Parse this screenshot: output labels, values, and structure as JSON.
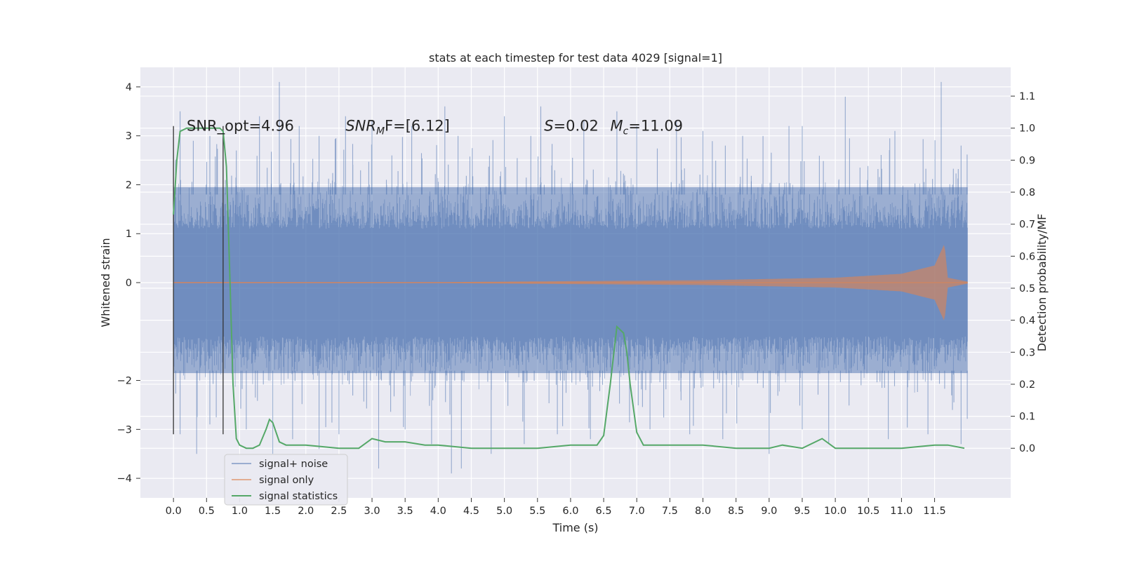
{
  "chart_data": {
    "type": "line",
    "title": "stats at each timestep for test data 4029 [signal=1]",
    "xlabel": "Time (s)",
    "ylabel": "Whitened strain",
    "y2label": "Detection probability/MF",
    "xlim": [
      -0.5,
      12.65
    ],
    "ylim": [
      -4.4,
      4.4
    ],
    "y2lim": [
      -0.155,
      1.19
    ],
    "x_ticks": [
      "0.0",
      "0.5",
      "1.0",
      "1.5",
      "2.0",
      "2.5",
      "3.0",
      "3.5",
      "4.0",
      "4.5",
      "5.0",
      "5.5",
      "6.0",
      "6.5",
      "7.0",
      "7.5",
      "8.0",
      "8.5",
      "9.0",
      "9.5",
      "10.0",
      "10.5",
      "11.0",
      "11.5"
    ],
    "y_ticks": [
      "4",
      "3",
      "2",
      "1",
      "0",
      "−2",
      "−3",
      "−4"
    ],
    "y2_ticks": [
      "1.1",
      "1.0",
      "0.9",
      "0.8",
      "0.7",
      "0.6",
      "0.5",
      "0.4",
      "0.3",
      "0.2",
      "0.1",
      "0.0"
    ],
    "grid": true,
    "legend_position": "bottom-left",
    "annotations": [
      {
        "label": "SNR_opt=4.96",
        "x": 0.2,
        "y": 3.2
      },
      {
        "label": "SNR",
        "sub": "M",
        "rest": "F=[6.12]",
        "x": 2.6,
        "y": 3.2
      },
      {
        "label": "S",
        "rest": "=0.02",
        "x": 5.6,
        "y": 3.2
      },
      {
        "label": "M",
        "sub": "c",
        "rest": "=11.09",
        "x": 6.6,
        "y": 3.2
      }
    ],
    "vlines": [
      {
        "x": 0.0,
        "y": [
          -3.1,
          3.2
        ]
      },
      {
        "x": 0.75,
        "y": [
          -3.1,
          3.2
        ]
      }
    ],
    "series": [
      {
        "name": "signal+ noise",
        "color": "#4c72b0",
        "x_range": [
          0,
          12.0
        ],
        "envelope_core": [
          -1.85,
          1.95
        ],
        "spikes_up": [
          [
            0.1,
            3.5
          ],
          [
            0.3,
            2.9
          ],
          [
            0.55,
            3.0
          ],
          [
            0.95,
            2.7
          ],
          [
            1.3,
            3.4
          ],
          [
            1.6,
            4.1
          ],
          [
            1.9,
            3.2
          ],
          [
            2.2,
            3.0
          ],
          [
            2.6,
            3.4
          ],
          [
            3.0,
            3.3
          ],
          [
            3.3,
            2.6
          ],
          [
            3.6,
            3.2
          ],
          [
            4.1,
            3.6
          ],
          [
            4.3,
            3.0
          ],
          [
            5.0,
            3.4
          ],
          [
            5.4,
            3.0
          ],
          [
            5.55,
            3.6
          ],
          [
            6.2,
            3.3
          ],
          [
            6.7,
            3.5
          ],
          [
            7.0,
            3.2
          ],
          [
            7.6,
            3.3
          ],
          [
            8.0,
            3.1
          ],
          [
            8.6,
            3.0
          ],
          [
            9.3,
            3.2
          ],
          [
            9.5,
            3.2
          ],
          [
            10.15,
            3.8
          ],
          [
            10.9,
            3.1
          ],
          [
            11.6,
            4.1
          ],
          [
            11.9,
            2.8
          ]
        ],
        "spikes_down": [
          [
            0.1,
            -3.1
          ],
          [
            0.35,
            -3.5
          ],
          [
            0.55,
            -2.9
          ],
          [
            1.1,
            -3.0
          ],
          [
            1.5,
            -3.5
          ],
          [
            1.8,
            -3.2
          ],
          [
            2.2,
            -3.4
          ],
          [
            2.5,
            -3.1
          ],
          [
            3.1,
            -3.8
          ],
          [
            3.5,
            -3.0
          ],
          [
            3.9,
            -3.3
          ],
          [
            4.2,
            -3.9
          ],
          [
            4.35,
            -3.8
          ],
          [
            4.8,
            -3.5
          ],
          [
            5.3,
            -3.3
          ],
          [
            5.8,
            -3.1
          ],
          [
            6.3,
            -3.2
          ],
          [
            7.2,
            -3.0
          ],
          [
            7.8,
            -3.1
          ],
          [
            8.3,
            -3.2
          ],
          [
            9.0,
            -3.5
          ],
          [
            9.5,
            -3.0
          ],
          [
            9.9,
            -3.3
          ],
          [
            10.8,
            -3.2
          ],
          [
            11.4,
            -3.1
          ],
          [
            11.9,
            -3.3
          ]
        ]
      },
      {
        "name": "signal only",
        "color": "#dd8452",
        "x_range": [
          0,
          12.0
        ],
        "amplitude": [
          [
            0.0,
            0.01
          ],
          [
            4.0,
            0.01
          ],
          [
            8.0,
            0.05
          ],
          [
            10.0,
            0.1
          ],
          [
            11.0,
            0.18
          ],
          [
            11.5,
            0.35
          ],
          [
            11.65,
            0.8
          ],
          [
            11.7,
            0.1
          ],
          [
            12.0,
            0.02
          ]
        ]
      },
      {
        "name": "signal statistics",
        "color": "#55a868",
        "axis": "right",
        "x": [
          0.0,
          0.05,
          0.1,
          0.2,
          0.3,
          0.5,
          0.7,
          0.75,
          0.8,
          0.85,
          0.9,
          0.95,
          1.0,
          1.1,
          1.2,
          1.3,
          1.4,
          1.45,
          1.5,
          1.6,
          1.7,
          1.8,
          2.0,
          2.5,
          2.8,
          3.0,
          3.2,
          3.5,
          3.8,
          4.0,
          4.5,
          5.0,
          5.5,
          6.0,
          6.4,
          6.5,
          6.6,
          6.7,
          6.8,
          6.85,
          6.9,
          7.0,
          7.1,
          7.2,
          7.5,
          7.8,
          7.9,
          8.0,
          8.5,
          9.0,
          9.2,
          9.5,
          9.8,
          10.0,
          10.5,
          11.0,
          11.5,
          11.7,
          11.95
        ],
        "y": [
          0.73,
          0.9,
          0.99,
          1.0,
          1.0,
          1.0,
          1.0,
          0.99,
          0.88,
          0.55,
          0.2,
          0.03,
          0.01,
          0.0,
          0.0,
          0.01,
          0.06,
          0.09,
          0.08,
          0.02,
          0.01,
          0.01,
          0.01,
          0.0,
          0.0,
          0.03,
          0.02,
          0.02,
          0.01,
          0.01,
          0.0,
          0.0,
          0.0,
          0.01,
          0.01,
          0.04,
          0.2,
          0.38,
          0.36,
          0.3,
          0.2,
          0.05,
          0.01,
          0.01,
          0.01,
          0.01,
          0.01,
          0.01,
          0.0,
          0.0,
          0.01,
          0.0,
          0.03,
          0.0,
          0.0,
          0.0,
          0.01,
          0.01,
          0.0
        ]
      }
    ]
  }
}
